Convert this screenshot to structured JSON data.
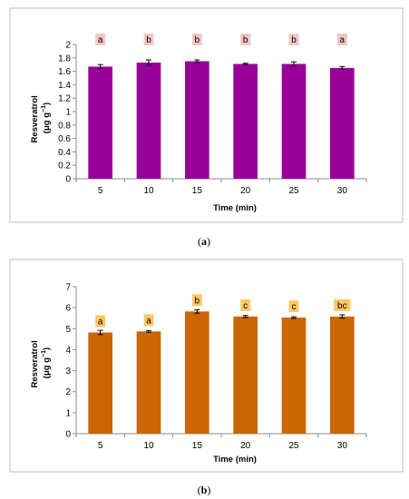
{
  "chart_data": [
    {
      "type": "bar",
      "caption": {
        "open": "(",
        "letter": "a",
        "close": ")"
      },
      "categories": [
        "5",
        "10",
        "15",
        "20",
        "25",
        "30"
      ],
      "values": [
        1.67,
        1.73,
        1.75,
        1.71,
        1.71,
        1.65
      ],
      "errors": [
        0.03,
        0.04,
        0.02,
        0.01,
        0.03,
        0.02
      ],
      "letters": [
        "a",
        "b",
        "b",
        "b",
        "b",
        "a"
      ],
      "xlabel": "Time (min)",
      "ylabel_line1": "Resveratrol",
      "ylabel_line2_base": "(μg g",
      "ylabel_line2_sup": "−1",
      "ylabel_line2_end": ")",
      "ylim": [
        0,
        2
      ],
      "yticks": [
        "0",
        "0.2",
        "0.4",
        "0.6",
        "0.8",
        "1",
        "1.2",
        "1.4",
        "1.6",
        "1.8",
        "2"
      ],
      "bar_color": "#990099",
      "letter_bg": "#f4c7c3",
      "grid": false,
      "legend": "none"
    },
    {
      "type": "bar",
      "caption": {
        "open": "(",
        "letter": "b",
        "close": ")"
      },
      "categories": [
        "5",
        "10",
        "15",
        "20",
        "25",
        "30"
      ],
      "values": [
        4.82,
        4.87,
        5.82,
        5.58,
        5.53,
        5.58
      ],
      "errors": [
        0.1,
        0.04,
        0.08,
        0.05,
        0.04,
        0.08
      ],
      "letters": [
        "a",
        "a",
        "b",
        "c",
        "c",
        "bc"
      ],
      "xlabel": "Time (min)",
      "ylabel_line1": "Resveratrol",
      "ylabel_line2_base": "(μg g",
      "ylabel_line2_sup": "−1",
      "ylabel_line2_end": ")",
      "ylim": [
        0,
        7
      ],
      "yticks": [
        "0",
        "1",
        "2",
        "3",
        "4",
        "5",
        "6",
        "7"
      ],
      "bar_color": "#cc6600",
      "letter_bg": "#ffc766",
      "grid": false,
      "legend": "none"
    }
  ]
}
